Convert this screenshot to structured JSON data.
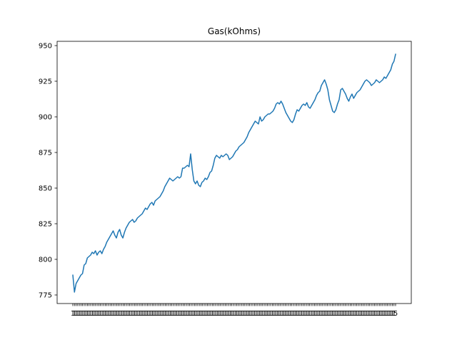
{
  "chart_data": {
    "type": "line",
    "title": "Gas(kOhms)",
    "xlabel": "",
    "ylabel": "",
    "ylim": [
      769,
      953
    ],
    "yticks": [
      775,
      800,
      825,
      850,
      875,
      900,
      925,
      950
    ],
    "ytick_labels": [
      "775",
      "800",
      "825",
      "850",
      "875",
      "900",
      "925",
      "950"
    ],
    "x_tick_count": 200,
    "x_tick_label_text": "1",
    "x_tick_label_last_text": "5",
    "grid": false,
    "series": [
      {
        "name": "Gas(kOhms)",
        "color": "#1f77b4",
        "values": [
          789,
          777,
          783,
          785,
          787,
          789,
          790,
          796,
          797,
          801,
          802,
          803,
          805,
          804,
          806,
          803,
          805,
          806,
          804,
          807,
          809,
          812,
          814,
          816,
          818,
          820,
          817,
          815,
          819,
          821,
          817,
          815,
          819,
          822,
          824,
          826,
          827,
          828,
          826,
          827,
          829,
          830,
          831,
          832,
          834,
          836,
          835,
          837,
          839,
          840,
          838,
          841,
          842,
          843,
          844,
          846,
          848,
          851,
          853,
          855,
          857,
          856,
          855,
          856,
          857,
          858,
          857,
          858,
          864,
          864,
          865,
          866,
          865,
          874,
          863,
          855,
          853,
          855,
          852,
          851,
          854,
          855,
          857,
          856,
          858,
          861,
          862,
          866,
          871,
          873,
          872,
          871,
          873,
          872,
          873,
          874,
          873,
          870,
          871,
          872,
          874,
          876,
          877,
          879,
          880,
          881,
          882,
          884,
          886,
          889,
          891,
          893,
          895,
          897,
          896,
          895,
          900,
          897,
          898,
          900,
          901,
          902,
          902,
          903,
          904,
          906,
          909,
          910,
          909,
          911,
          909,
          906,
          903,
          901,
          899,
          897,
          896,
          898,
          902,
          905,
          904,
          906,
          908,
          909,
          908,
          910,
          907,
          906,
          908,
          910,
          912,
          915,
          917,
          918,
          922,
          924,
          926,
          923,
          919,
          912,
          908,
          904,
          903,
          905,
          909,
          912,
          919,
          920,
          918,
          916,
          913,
          911,
          914,
          916,
          913,
          915,
          917,
          918,
          919,
          921,
          923,
          925,
          926,
          925,
          924,
          922,
          923,
          924,
          926,
          925,
          924,
          925,
          926,
          928,
          927,
          929,
          931,
          933,
          937,
          939,
          944
        ]
      }
    ]
  }
}
